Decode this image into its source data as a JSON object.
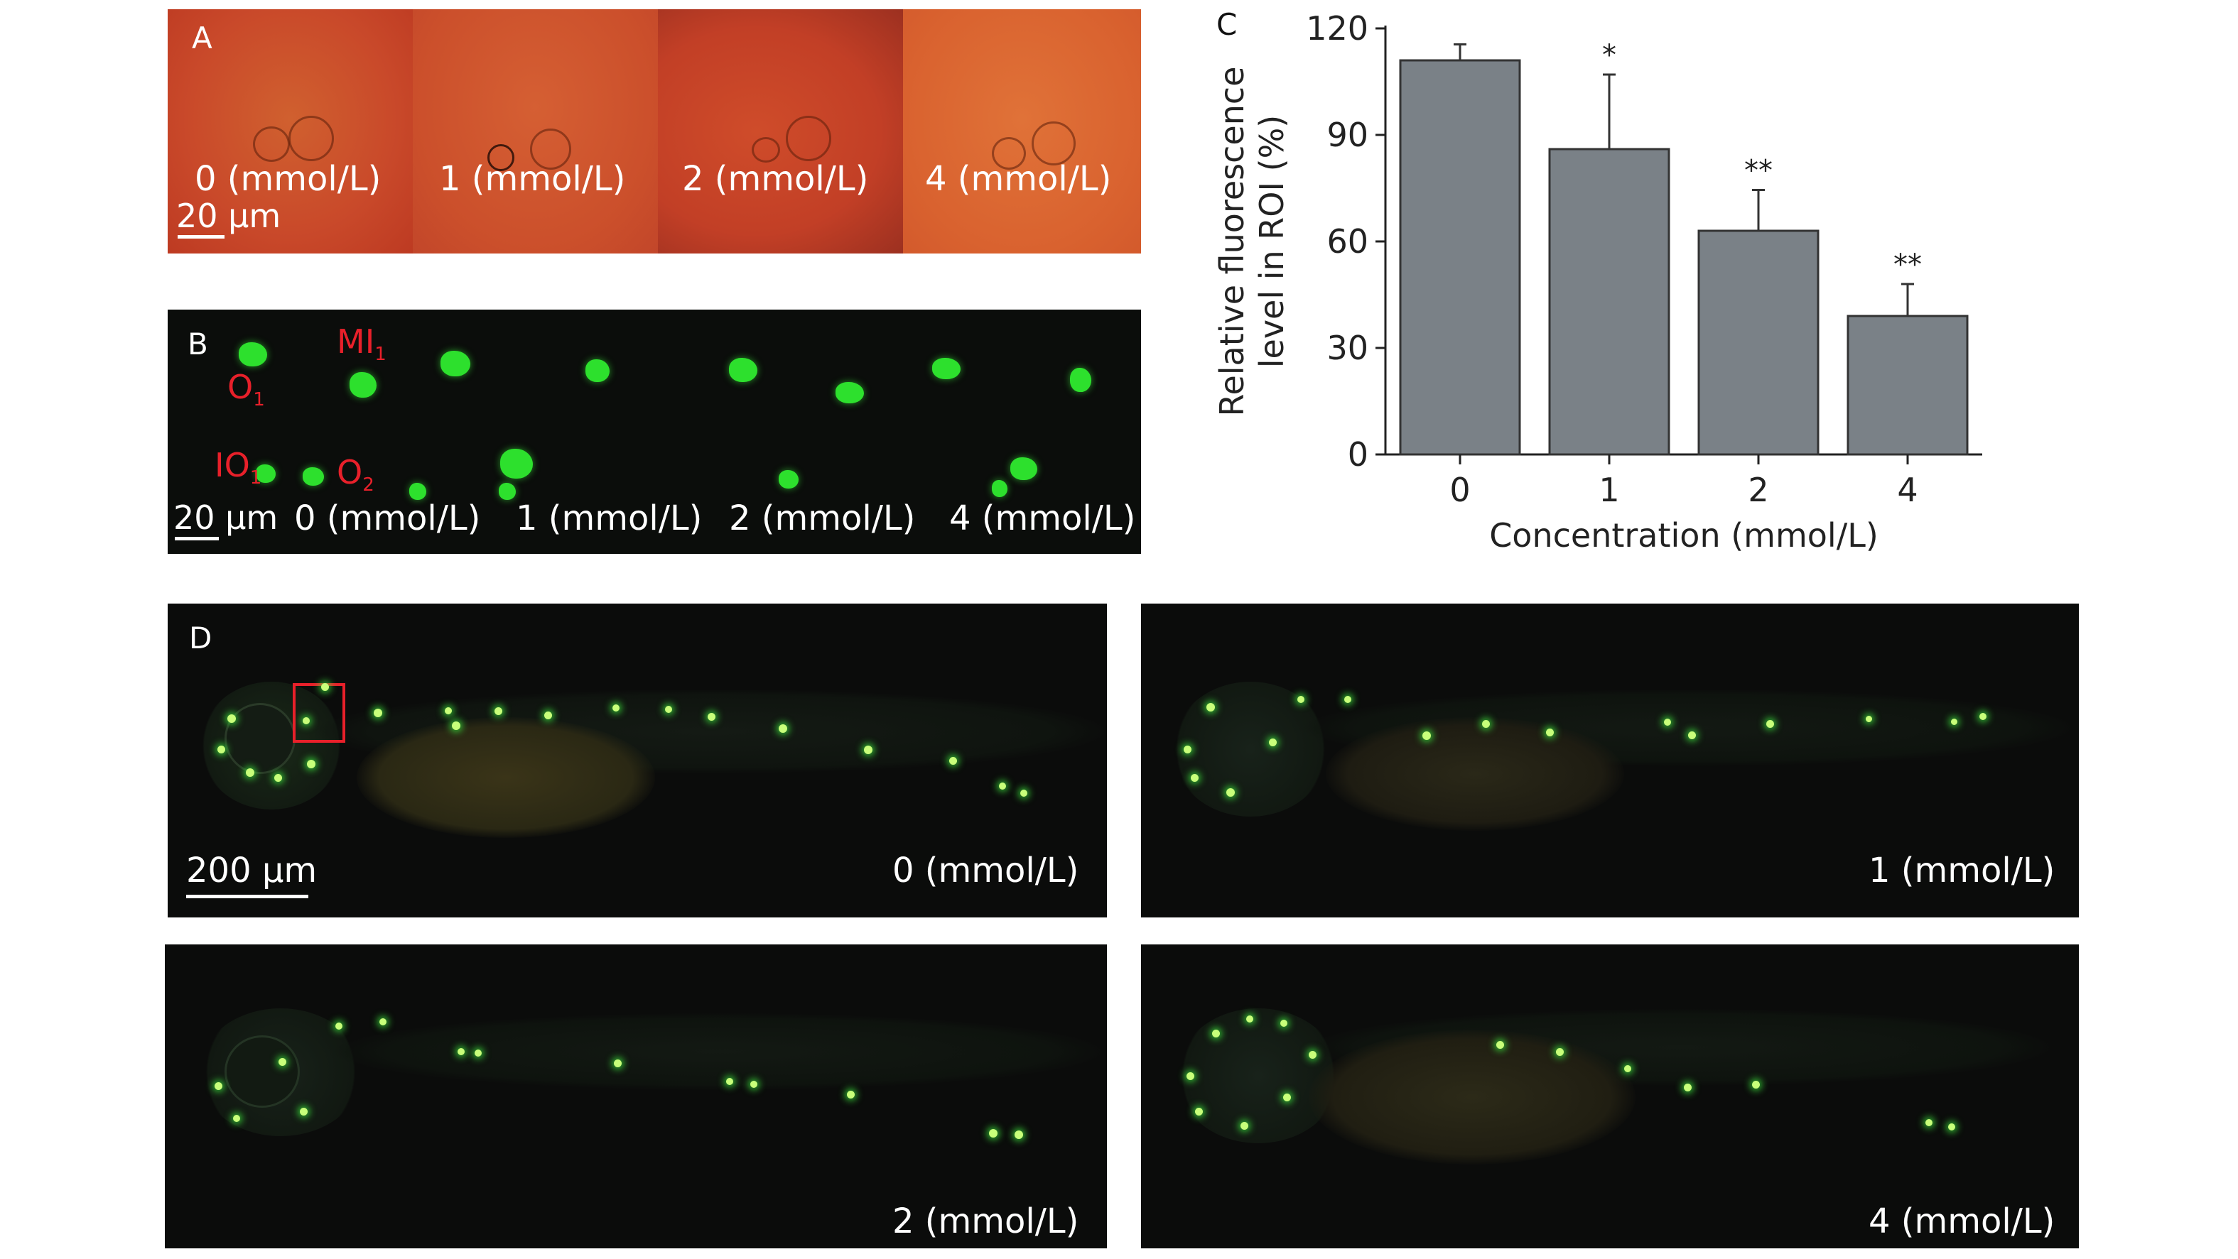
{
  "panel_a": {
    "label": "A",
    "conditions": [
      "0 (mmol/L)",
      "1 (mmol/L)",
      "2 (mmol/L)",
      "4 (mmol/L)"
    ],
    "scale": "20 µm"
  },
  "panel_b": {
    "label": "B",
    "conditions": [
      "0 (mmol/L)",
      "1 (mmol/L)",
      "2 (mmol/L)",
      "4 (mmol/L)"
    ],
    "scale": "20 µm",
    "markers": [
      {
        "base": "O",
        "sub": "1"
      },
      {
        "base": "MI",
        "sub": "1"
      },
      {
        "base": "IO",
        "sub": "1"
      },
      {
        "base": "O",
        "sub": "2"
      }
    ]
  },
  "panel_d": {
    "label": "D",
    "scale": "200 µm",
    "conditions": [
      "0 (mmol/L)",
      "1 (mmol/L)",
      "2 (mmol/L)",
      "4 (mmol/L)"
    ]
  },
  "chart_data": {
    "panel_label": "C",
    "type": "bar",
    "categories": [
      "0",
      "1",
      "2",
      "4"
    ],
    "values": [
      111,
      86,
      63,
      39
    ],
    "error_upper": [
      4.5,
      21,
      11.5,
      9
    ],
    "significance": [
      "",
      "*",
      "**",
      "**"
    ],
    "xlabel": "Concentration (mmol/L)",
    "ylabel_lines": [
      "Relative fluorescence",
      "level in ROI (%)"
    ],
    "yticks": [
      0,
      30,
      60,
      90,
      120
    ],
    "ylim": [
      0,
      120
    ],
    "bar_color": "#7a8187"
  }
}
